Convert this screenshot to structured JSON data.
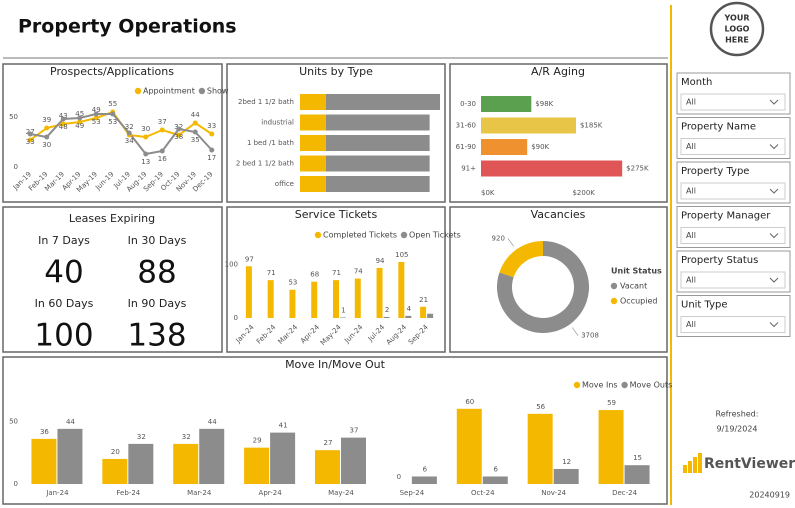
{
  "header": {
    "title": "Property Operations"
  },
  "chart_data": [
    {
      "type": "line",
      "title": "Prospects/Applications",
      "categories": [
        "Jan-19",
        "Feb-19",
        "Mar-19",
        "Apr-19",
        "May-19",
        "Jun-19",
        "Jul-19",
        "Aug-19",
        "Sep-19",
        "Oct-19",
        "Nov-19",
        "Dec-19"
      ],
      "series": [
        {
          "name": "Appointment",
          "color": "#f5b800",
          "values": [
            27,
            39,
            43,
            45,
            49,
            55,
            32,
            30,
            37,
            32,
            44,
            33
          ]
        },
        {
          "name": "Show",
          "color": "#8c8c8c",
          "values": [
            33,
            30,
            48,
            49,
            53,
            53,
            34,
            13,
            16,
            38,
            35,
            17
          ]
        }
      ],
      "ylim": [
        0,
        70
      ],
      "yticks": [
        0,
        50
      ]
    },
    {
      "type": "hbar-stacked",
      "title": "Units by Type",
      "categories": [
        "2bed 1 1/2 bath",
        "industrial",
        "1 bed /1 bath",
        "2 bed  1 1/2 bath",
        "office"
      ],
      "series": [
        {
          "color": "#f5b800",
          "values": [
            5,
            5,
            5,
            5,
            5
          ]
        },
        {
          "color": "#8c8c8c",
          "values": [
            22,
            20,
            20,
            20,
            20
          ]
        }
      ],
      "xlim": [
        0,
        27
      ]
    },
    {
      "type": "hbar",
      "title": "A/R Aging",
      "categories": [
        "0-30",
        "31-60",
        "61-90",
        "91+"
      ],
      "values": [
        98000,
        185000,
        90000,
        275000
      ],
      "value_labels": [
        "$98K",
        "$185K",
        "$90K",
        "$275K"
      ],
      "colors": [
        "#5ba04e",
        "#e8c547",
        "#f0912f",
        "#e05656"
      ],
      "xlim": [
        0,
        300000
      ],
      "xticks": [
        {
          "value": 0,
          "label": "$0K"
        },
        {
          "value": 200000,
          "label": "$200K"
        }
      ]
    },
    {
      "type": "bar",
      "title": "Service Tickets",
      "categories": [
        "Jan-24",
        "Feb-24",
        "Mar-24",
        "Apr-24",
        "May-24",
        "Jun-24",
        "Jul-24",
        "Aug-24",
        "Sep-24"
      ],
      "series": [
        {
          "name": "Completed Tickets",
          "color": "#f5b800",
          "values": [
            97,
            71,
            53,
            68,
            71,
            74,
            94,
            105,
            21
          ]
        },
        {
          "name": "Open Tickets",
          "color": "#8c8c8c",
          "values": [
            null,
            null,
            null,
            null,
            1,
            null,
            2,
            4,
            8
          ],
          "value_labels": [
            null,
            null,
            null,
            null,
            "1",
            null,
            "2",
            "4",
            null
          ]
        }
      ],
      "ylim": [
        0,
        120
      ],
      "yticks": [
        0,
        100
      ]
    },
    {
      "type": "donut",
      "title": "Vacancies",
      "legend_title": "Unit Status",
      "categories": [
        "Vacant",
        "Occupied"
      ],
      "values": [
        3708,
        920
      ],
      "colors": [
        "#8c8c8c",
        "#f5b800"
      ]
    },
    {
      "type": "bar",
      "title": "Move In/Move Out",
      "categories": [
        "Jan-24",
        "Feb-24",
        "Mar-24",
        "Apr-24",
        "May-24",
        "Sep-24",
        "Oct-24",
        "Nov-24",
        "Dec-24"
      ],
      "series": [
        {
          "name": "Move Ins",
          "color": "#f5b800",
          "values": [
            36,
            20,
            32,
            29,
            27,
            0,
            60,
            56,
            59
          ]
        },
        {
          "name": "Move Outs",
          "color": "#8c8c8c",
          "values": [
            44,
            32,
            44,
            41,
            37,
            6,
            6,
            12,
            15
          ]
        }
      ],
      "ylim": [
        0,
        75
      ],
      "yticks": [
        0,
        50
      ]
    }
  ],
  "leases": {
    "title": "Leases Expiring",
    "items": [
      {
        "label": "In 7 Days",
        "value": "40"
      },
      {
        "label": "In 30 Days",
        "value": "88"
      },
      {
        "label": "In 60 Days",
        "value": "100"
      },
      {
        "label": "In 90 Days",
        "value": "138"
      }
    ]
  },
  "sidebar": {
    "logo": [
      "YOUR",
      "LOGO",
      "HERE"
    ],
    "filters": [
      {
        "label": "Month",
        "value": "All"
      },
      {
        "label": "Property Name",
        "value": "All"
      },
      {
        "label": "Property Type",
        "value": "All"
      },
      {
        "label": "Property Manager",
        "value": "All"
      },
      {
        "label": "Property Status",
        "value": "All"
      },
      {
        "label": "Unit Type",
        "value": "All"
      }
    ],
    "refreshed_label": "Refreshed:",
    "refreshed_date": "9/19/2024",
    "brand": "RentViewer",
    "version": "20240919"
  }
}
